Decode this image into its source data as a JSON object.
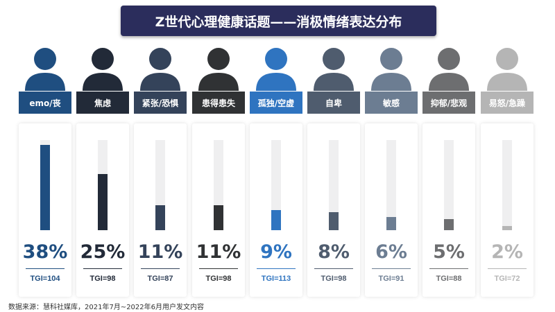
{
  "title": "Z世代心理健康话题——消极情绪表达分布",
  "source": "数据来源：慧科社媒库，2021年7月~2022年6月用户发文内容",
  "chart_data": {
    "type": "bar",
    "title": "Z世代心理健康话题——消极情绪表达分布",
    "categories": [
      "emo/丧",
      "焦虑",
      "紧张/恐惧",
      "患得患失",
      "孤独/空虚",
      "自卑",
      "敏感",
      "抑郁/悲观",
      "易怒/急躁"
    ],
    "values": [
      38,
      25,
      11,
      11,
      9,
      8,
      6,
      5,
      2
    ],
    "value_labels": [
      "38%",
      "25%",
      "11%",
      "11%",
      "9%",
      "8%",
      "6%",
      "5%",
      "2%"
    ],
    "tgi_labels": [
      "TGI=104",
      "TGI=98",
      "TGI=87",
      "TGI=98",
      "TGI=113",
      "TGI=98",
      "TGI=91",
      "TGI=88",
      "TGI=72"
    ],
    "tgi": [
      104,
      98,
      87,
      98,
      113,
      98,
      91,
      88,
      72
    ],
    "ylim": [
      0,
      40
    ],
    "colors": [
      "#1f4e80",
      "#222a38",
      "#34435a",
      "#303234",
      "#2f74c0",
      "#4f5c6e",
      "#6c7d92",
      "#6d6e70",
      "#b5b5b5"
    ]
  }
}
